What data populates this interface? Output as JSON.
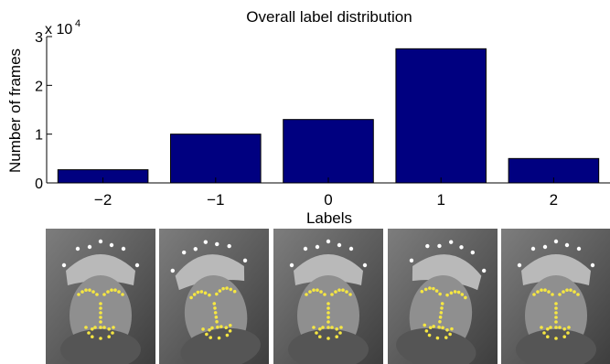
{
  "chart_data": {
    "type": "bar",
    "title": "Overall label distribution",
    "xlabel": "Labels",
    "ylabel": "Number of frames",
    "y_scale_note": "x 10",
    "y_scale_exponent": "4",
    "categories": [
      "−2",
      "−1",
      "0",
      "1",
      "2"
    ],
    "values": [
      2700,
      10000,
      13000,
      27500,
      5000
    ],
    "ylim": [
      0,
      30000
    ],
    "y_ticks": [
      0,
      10000,
      20000,
      30000
    ],
    "y_tick_labels": [
      "0",
      "1",
      "2",
      "3"
    ],
    "bar_color": "#000080",
    "grid": false
  },
  "photos": [
    {
      "icon": "face-photo-icon"
    },
    {
      "icon": "face-photo-icon"
    },
    {
      "icon": "face-photo-icon"
    },
    {
      "icon": "face-photo-icon"
    },
    {
      "icon": "face-photo-icon"
    }
  ]
}
